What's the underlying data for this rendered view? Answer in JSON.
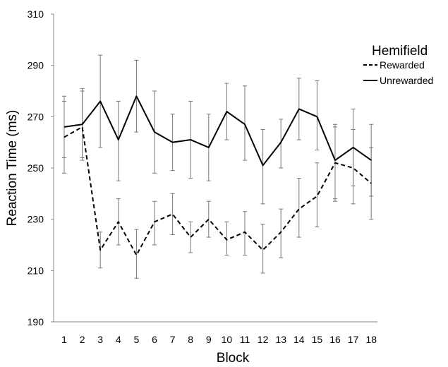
{
  "chart_data": {
    "type": "line",
    "xlabel": "Block",
    "ylabel": "Reaction Time (ms)",
    "ylim": [
      190,
      310
    ],
    "y_ticks": [
      190,
      210,
      230,
      250,
      270,
      290,
      310
    ],
    "categories": [
      "1",
      "2",
      "3",
      "4",
      "5",
      "6",
      "7",
      "8",
      "9",
      "10",
      "11",
      "12",
      "13",
      "14",
      "15",
      "16",
      "17",
      "18"
    ],
    "grid": false,
    "legend": {
      "title": "Hemifield",
      "position": "top-right"
    },
    "series": [
      {
        "name": "Rewarded",
        "style": "dashed",
        "values": [
          262,
          266,
          218,
          229,
          216,
          229,
          232,
          223,
          230,
          222,
          225,
          218,
          225,
          234,
          239,
          252,
          250,
          244
        ],
        "err_low": [
          248,
          253,
          211,
          220,
          207,
          220,
          224,
          217,
          223,
          216,
          216,
          209,
          215,
          223,
          227,
          237,
          236,
          230
        ],
        "err_high": [
          276,
          280,
          225,
          238,
          226,
          237,
          240,
          229,
          237,
          229,
          233,
          228,
          234,
          246,
          252,
          266,
          265,
          258
        ]
      },
      {
        "name": "Unrewarded",
        "style": "solid",
        "values": [
          266,
          267,
          276,
          261,
          278,
          264,
          260,
          261,
          258,
          272,
          267,
          251,
          260,
          273,
          270,
          253,
          258,
          253
        ],
        "err_low": [
          254,
          254,
          258,
          245,
          264,
          248,
          249,
          246,
          245,
          261,
          253,
          236,
          250,
          261,
          257,
          238,
          243,
          239
        ],
        "err_high": [
          278,
          281,
          294,
          276,
          292,
          280,
          271,
          276,
          271,
          283,
          282,
          265,
          269,
          285,
          284,
          267,
          273,
          267
        ]
      }
    ]
  }
}
